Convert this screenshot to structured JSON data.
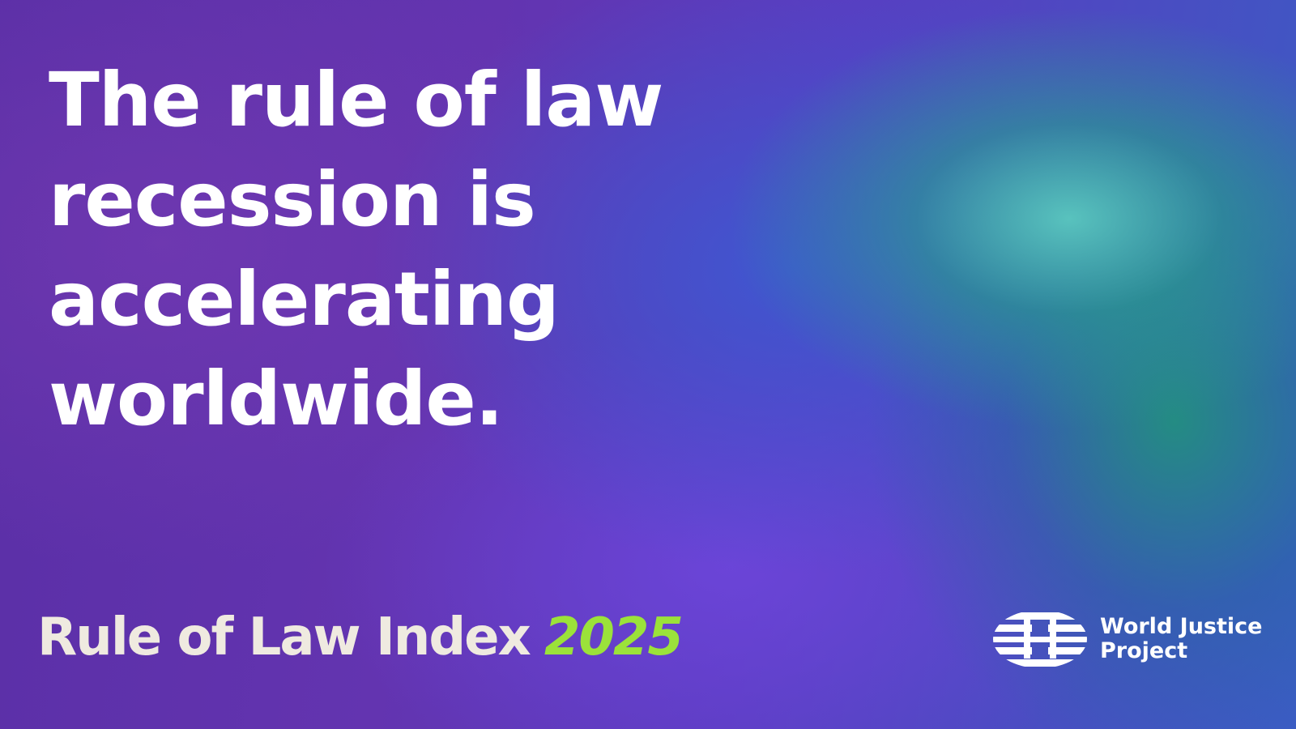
{
  "headline": {
    "lines": [
      "The rule of law",
      "recession is",
      "accelerating",
      "worldwide."
    ]
  },
  "footer": {
    "index_name": "Rule of Law Index",
    "year": "2025"
  },
  "logo": {
    "lines": [
      "World Justice",
      "Project"
    ]
  }
}
